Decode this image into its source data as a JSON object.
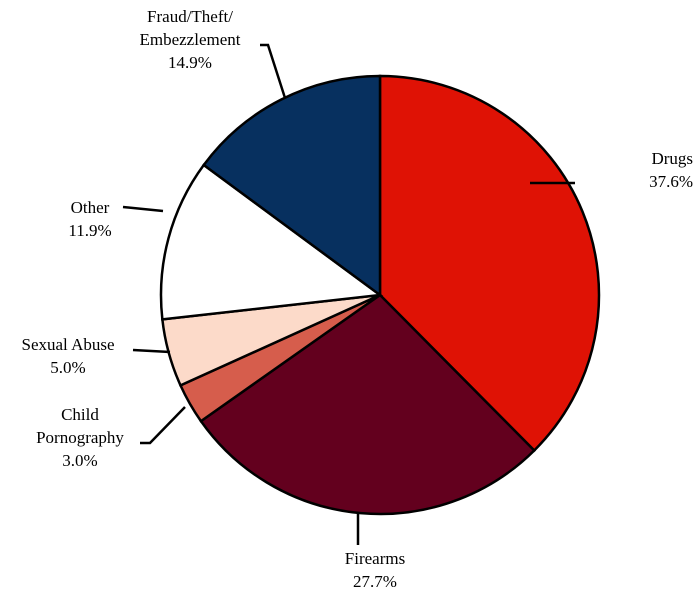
{
  "chart_data": {
    "type": "pie",
    "title": "",
    "slices": [
      {
        "label": "Drugs",
        "label_lines": [
          "Drugs"
        ],
        "value": 37.6,
        "value_text": "37.6%",
        "color": "#df1205"
      },
      {
        "label": "Firearms",
        "label_lines": [
          "Firearms"
        ],
        "value": 27.7,
        "value_text": "27.7%",
        "color": "#63001e"
      },
      {
        "label": "Child Pornography",
        "label_lines": [
          "Child",
          "Pornography"
        ],
        "value": 3.0,
        "value_text": "3.0%",
        "color": "#d65d4c"
      },
      {
        "label": "Sexual Abuse",
        "label_lines": [
          "Sexual Abuse"
        ],
        "value": 5.0,
        "value_text": "5.0%",
        "color": "#fcdac9"
      },
      {
        "label": "Other",
        "label_lines": [
          "Other"
        ],
        "value": 11.9,
        "value_text": "11.9%",
        "color": "#ffffff"
      },
      {
        "label": "Fraud/Theft/Embezzlement",
        "label_lines": [
          "Fraud/Theft/",
          "Embezzlement"
        ],
        "value": 14.9,
        "value_text": "14.9%",
        "color": "#07305f"
      }
    ],
    "start_angle_deg": 0,
    "direction": "clockwise",
    "legend": "none"
  }
}
